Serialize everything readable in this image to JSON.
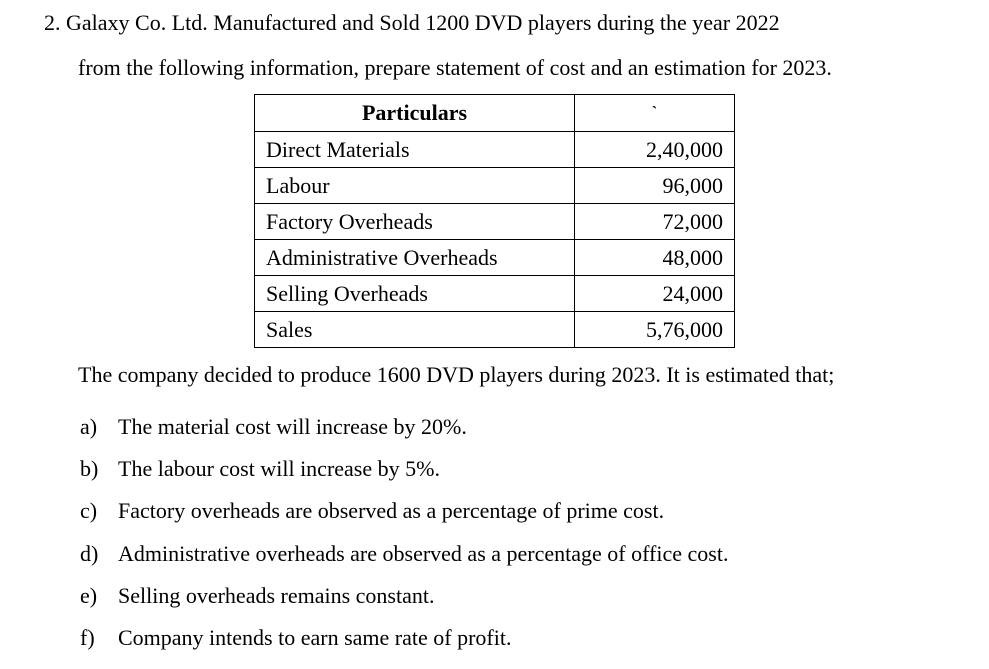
{
  "question": {
    "line1": "2. Galaxy Co. Ltd. Manufactured and Sold 1200 DVD players during the year 2022",
    "line2": "from the following information, prepare statement of cost and an estimation for 2023."
  },
  "table": {
    "header_particulars": "Particulars",
    "header_amount": "`",
    "rows": [
      {
        "label": "Direct Materials",
        "value": "2,40,000"
      },
      {
        "label": "Labour",
        "value": "96,000"
      },
      {
        "label": "Factory Overheads",
        "value": "72,000"
      },
      {
        "label": "Administrative Overheads",
        "value": "48,000"
      },
      {
        "label": "Selling Overheads",
        "value": "24,000"
      },
      {
        "label": "Sales",
        "value": "5,76,000"
      }
    ]
  },
  "statement": "The company decided to produce 1600 DVD players during 2023. It is estimated that;",
  "conditions": [
    {
      "marker": "a)",
      "text": "The material cost will increase by 20%."
    },
    {
      "marker": "b)",
      "text": "The labour cost will increase by 5%."
    },
    {
      "marker": "c)",
      "text": "Factory overheads are observed as a percentage of prime cost."
    },
    {
      "marker": "d)",
      "text": "Administrative overheads are observed as a percentage of office cost."
    },
    {
      "marker": "e)",
      "text": "Selling overheads remains constant."
    },
    {
      "marker": "f)",
      "text": "Company intends to earn same rate of profit."
    }
  ]
}
